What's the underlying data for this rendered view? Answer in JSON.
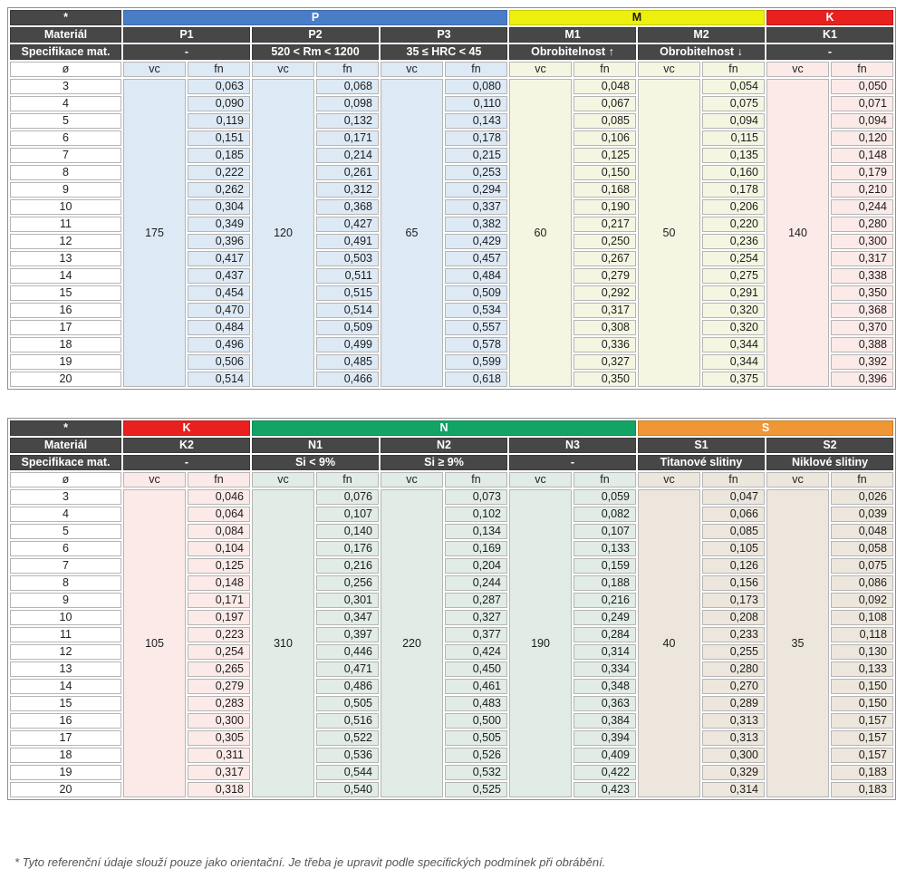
{
  "labels": {
    "star": "*",
    "material_row": "Materiál",
    "spec_row": "Specifikace mat.",
    "diameter_symbol": "ø",
    "vc": "vc",
    "fn": "fn"
  },
  "colors": {
    "header_dark": "#474747",
    "header_text": "#ffffff"
  },
  "diameters": [
    "3",
    "4",
    "5",
    "6",
    "7",
    "8",
    "9",
    "10",
    "11",
    "12",
    "13",
    "14",
    "15",
    "16",
    "17",
    "18",
    "19",
    "20"
  ],
  "footnote": "* Tyto referenční údaje slouží pouze jako orientační. Je třeba je upravit podle specifických podmínek při obrábění.",
  "tables": [
    {
      "name": "top",
      "groups": [
        {
          "label": "P",
          "color": "#4a7dc8",
          "text": "#ffffff",
          "tint": "#dde9f5",
          "span": 3
        },
        {
          "label": "M",
          "color": "#edf00c",
          "text": "#1a1a1a",
          "tint": "#f4f6e1",
          "span": 2
        },
        {
          "label": "K",
          "color": "#e8201e",
          "text": "#ffffff",
          "tint": "#fbeae8",
          "span": 1
        }
      ],
      "columns": [
        {
          "group": 0,
          "material": "P1",
          "spec": "-",
          "vc": "175",
          "fn": [
            "0,063",
            "0,090",
            "0,119",
            "0,151",
            "0,185",
            "0,222",
            "0,262",
            "0,304",
            "0,349",
            "0,396",
            "0,417",
            "0,437",
            "0,454",
            "0,470",
            "0,484",
            "0,496",
            "0,506",
            "0,514"
          ]
        },
        {
          "group": 0,
          "material": "P2",
          "spec": "520 < Rm < 1200",
          "vc": "120",
          "fn": [
            "0,068",
            "0,098",
            "0,132",
            "0,171",
            "0,214",
            "0,261",
            "0,312",
            "0,368",
            "0,427",
            "0,491",
            "0,503",
            "0,511",
            "0,515",
            "0,514",
            "0,509",
            "0,499",
            "0,485",
            "0,466"
          ]
        },
        {
          "group": 0,
          "material": "P3",
          "spec": "35 ≤ HRC < 45",
          "vc": "65",
          "fn": [
            "0,080",
            "0,110",
            "0,143",
            "0,178",
            "0,215",
            "0,253",
            "0,294",
            "0,337",
            "0,382",
            "0,429",
            "0,457",
            "0,484",
            "0,509",
            "0,534",
            "0,557",
            "0,578",
            "0,599",
            "0,618"
          ]
        },
        {
          "group": 1,
          "material": "M1",
          "spec": "Obrobitelnost ↑",
          "vc": "60",
          "fn": [
            "0,048",
            "0,067",
            "0,085",
            "0,106",
            "0,125",
            "0,150",
            "0,168",
            "0,190",
            "0,217",
            "0,250",
            "0,267",
            "0,279",
            "0,292",
            "0,317",
            "0,308",
            "0,336",
            "0,327",
            "0,350"
          ]
        },
        {
          "group": 1,
          "material": "M2",
          "spec": "Obrobitelnost ↓",
          "vc": "50",
          "fn": [
            "0,054",
            "0,075",
            "0,094",
            "0,115",
            "0,135",
            "0,160",
            "0,178",
            "0,206",
            "0,220",
            "0,236",
            "0,254",
            "0,275",
            "0,291",
            "0,320",
            "0,320",
            "0,344",
            "0,344",
            "0,375"
          ]
        },
        {
          "group": 2,
          "material": "K1",
          "spec": "-",
          "vc": "140",
          "fn": [
            "0,050",
            "0,071",
            "0,094",
            "0,120",
            "0,148",
            "0,179",
            "0,210",
            "0,244",
            "0,280",
            "0,300",
            "0,317",
            "0,338",
            "0,350",
            "0,368",
            "0,370",
            "0,388",
            "0,392",
            "0,396"
          ]
        }
      ]
    },
    {
      "name": "bottom",
      "groups": [
        {
          "label": "K",
          "color": "#e8201e",
          "text": "#ffffff",
          "tint": "#fbeae8",
          "span": 1
        },
        {
          "label": "N",
          "color": "#12a465",
          "text": "#ffffff",
          "tint": "#e0ece5",
          "span": 3
        },
        {
          "label": "S",
          "color": "#ef9734",
          "text": "#ffffff",
          "tint": "#ece6dc",
          "span": 2
        }
      ],
      "columns": [
        {
          "group": 0,
          "material": "K2",
          "spec": "-",
          "vc": "105",
          "fn": [
            "0,046",
            "0,064",
            "0,084",
            "0,104",
            "0,125",
            "0,148",
            "0,171",
            "0,197",
            "0,223",
            "0,254",
            "0,265",
            "0,279",
            "0,283",
            "0,300",
            "0,305",
            "0,311",
            "0,317",
            "0,318"
          ]
        },
        {
          "group": 1,
          "material": "N1",
          "spec": "Si < 9%",
          "vc": "310",
          "fn": [
            "0,076",
            "0,107",
            "0,140",
            "0,176",
            "0,216",
            "0,256",
            "0,301",
            "0,347",
            "0,397",
            "0,446",
            "0,471",
            "0,486",
            "0,505",
            "0,516",
            "0,522",
            "0,536",
            "0,544",
            "0,540"
          ]
        },
        {
          "group": 1,
          "material": "N2",
          "spec": "Si ≥ 9%",
          "vc": "220",
          "fn": [
            "0,073",
            "0,102",
            "0,134",
            "0,169",
            "0,204",
            "0,244",
            "0,287",
            "0,327",
            "0,377",
            "0,424",
            "0,450",
            "0,461",
            "0,483",
            "0,500",
            "0,505",
            "0,526",
            "0,532",
            "0,525"
          ]
        },
        {
          "group": 1,
          "material": "N3",
          "spec": "-",
          "vc": "190",
          "fn": [
            "0,059",
            "0,082",
            "0,107",
            "0,133",
            "0,159",
            "0,188",
            "0,216",
            "0,249",
            "0,284",
            "0,314",
            "0,334",
            "0,348",
            "0,363",
            "0,384",
            "0,394",
            "0,409",
            "0,422",
            "0,423"
          ]
        },
        {
          "group": 2,
          "material": "S1",
          "spec": "Titanové slitiny",
          "vc": "40",
          "fn": [
            "0,047",
            "0,066",
            "0,085",
            "0,105",
            "0,126",
            "0,156",
            "0,173",
            "0,208",
            "0,233",
            "0,255",
            "0,280",
            "0,270",
            "0,289",
            "0,313",
            "0,313",
            "0,300",
            "0,329",
            "0,314"
          ]
        },
        {
          "group": 2,
          "material": "S2",
          "spec": "Niklové slitiny",
          "vc": "35",
          "fn": [
            "0,026",
            "0,039",
            "0,048",
            "0,058",
            "0,075",
            "0,086",
            "0,092",
            "0,108",
            "0,118",
            "0,130",
            "0,133",
            "0,150",
            "0,150",
            "0,157",
            "0,157",
            "0,157",
            "0,183",
            "0,183"
          ]
        }
      ]
    }
  ]
}
